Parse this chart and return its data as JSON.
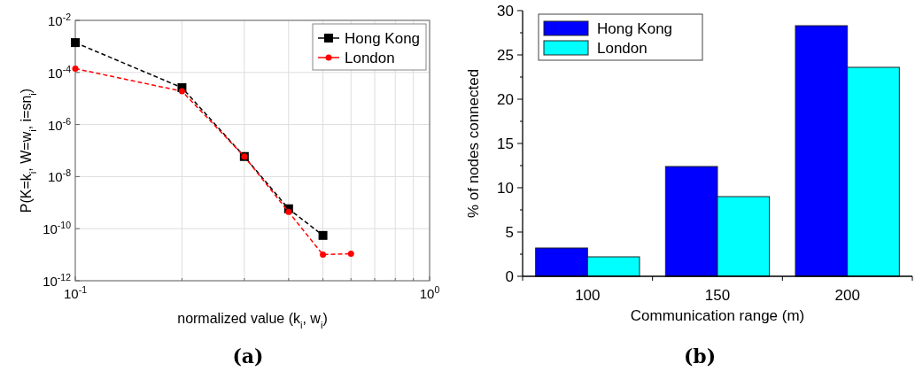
{
  "chart_data": [
    {
      "type": "line",
      "log": "xy",
      "xlabel": "normalized value (k$_{i}$, w$_{i}$)",
      "ylabel": "P(K=k$_{i}$, W=w$_{i}$, i=sn$_{i}$)",
      "xlim": [
        0.1,
        1
      ],
      "xticks": [
        {
          "value": 0.1,
          "label": "10$^{-1}$"
        },
        {
          "value": 0.2,
          "label": null
        },
        {
          "value": 0.3,
          "label": null
        },
        {
          "value": 0.4,
          "label": null
        },
        {
          "value": 0.5,
          "label": null
        },
        {
          "value": 0.6,
          "label": null
        },
        {
          "value": 0.7,
          "label": null
        },
        {
          "value": 0.8,
          "label": null
        },
        {
          "value": 0.9,
          "label": null
        },
        {
          "value": 1,
          "label": "10$^{0}$"
        }
      ],
      "ylim": [
        1e-12,
        0.01
      ],
      "yticks": [
        {
          "value": 1e-12,
          "label": "10$^{-12}$"
        },
        {
          "value": 1e-10,
          "label": "10$^{-10}$"
        },
        {
          "value": 1e-08,
          "label": "10$^{-8}$"
        },
        {
          "value": 1e-06,
          "label": "10$^{-6}$"
        },
        {
          "value": 0.0001,
          "label": "10$^{-4}$"
        },
        {
          "value": 0.01,
          "label": "10$^{-2}$"
        }
      ],
      "grid": true,
      "legend": "top right",
      "line_style": "dashed",
      "annotations": [
        "(a)"
      ],
      "series": [
        {
          "name": "Hong Kong",
          "color": "#000000",
          "marker": "square",
          "x": [
            0.1,
            0.2,
            0.3,
            0.4,
            0.5
          ],
          "values": [
            0.0014,
            2.6e-05,
            5.9e-08,
            5.8e-10,
            5.5e-11
          ]
        },
        {
          "name": "London",
          "color": "#ff0000",
          "marker": "circle",
          "x": [
            0.1,
            0.2,
            0.3,
            0.4,
            0.5,
            0.6
          ],
          "values": [
            0.00014,
            1.9e-05,
            5.9e-08,
            4.4e-10,
            1e-11,
            1.1e-11
          ]
        }
      ]
    },
    {
      "type": "bar",
      "categories": [
        "100",
        "150",
        "200"
      ],
      "xlabel": "Communication range (m)",
      "ylabel": "% of nodes connected",
      "ylim": [
        0,
        30
      ],
      "yticks": [
        0,
        {
          "value": 2.5,
          "label": null
        },
        5,
        {
          "value": 7.5,
          "label": null
        },
        10,
        {
          "value": 12.5,
          "label": null
        },
        15,
        {
          "value": 17.5,
          "label": null
        },
        20,
        {
          "value": 22.5,
          "label": null
        },
        25,
        {
          "value": 27.5,
          "label": null
        },
        30
      ],
      "legend": "top left",
      "annotations": [
        "(b)"
      ],
      "series": [
        {
          "name": "Hong Kong",
          "color": "#0000ff",
          "values": [
            3.2,
            12.4,
            28.3
          ]
        },
        {
          "name": "London",
          "color": "#00ffff",
          "values": [
            2.2,
            9.0,
            23.6
          ]
        }
      ]
    }
  ]
}
